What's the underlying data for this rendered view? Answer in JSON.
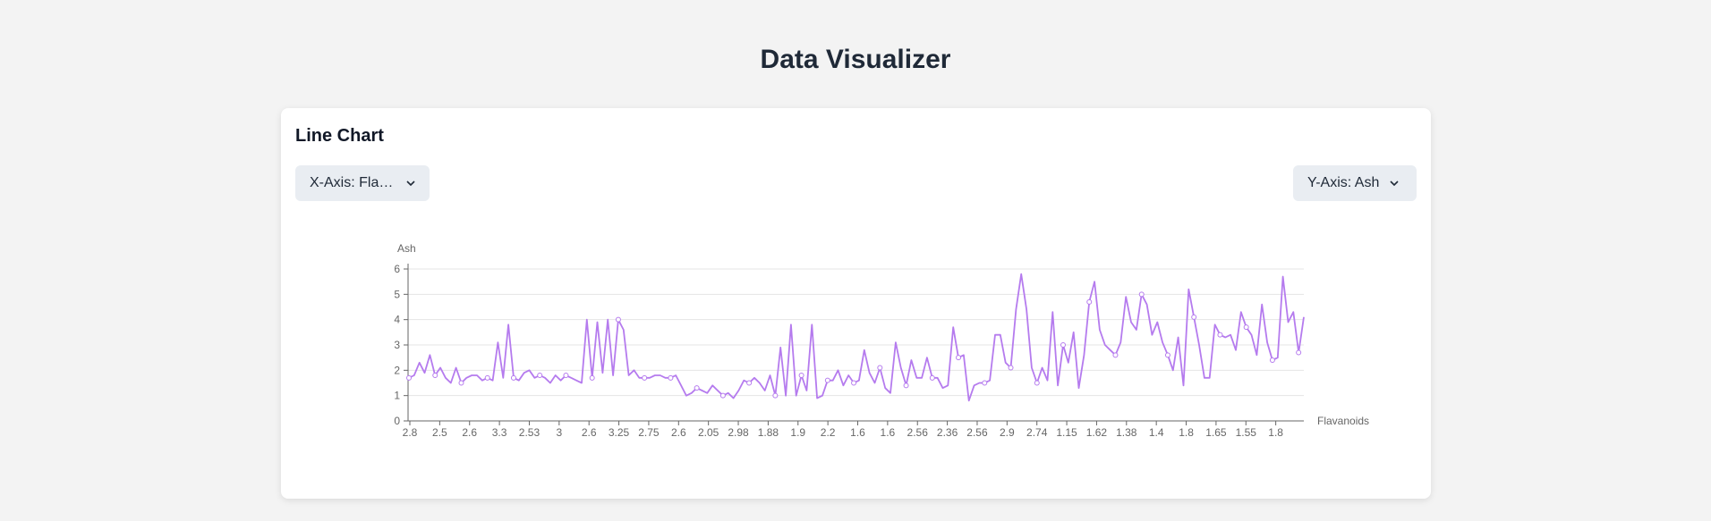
{
  "page": {
    "title": "Data Visualizer"
  },
  "card": {
    "title": "Line Chart",
    "x_select": {
      "label": "X-Axis: Flav..."
    },
    "y_select": {
      "label": "Y-Axis: Ash"
    }
  },
  "icons": {
    "dropdown": "chevron-down-icon"
  },
  "colors": {
    "line": "#b57bee",
    "grid": "#e5e5e5",
    "axis": "#666666"
  },
  "chart_data": {
    "type": "line",
    "xlabel": "Flavanoids",
    "ylabel": "Ash",
    "ylim": [
      0,
      6
    ],
    "yticks": [
      0,
      1,
      2,
      3,
      4,
      5,
      6
    ],
    "grid": "horizontal",
    "x_tick_labels": [
      "2.8",
      "2.5",
      "2.6",
      "3.3",
      "2.53",
      "3",
      "2.6",
      "3.25",
      "2.75",
      "2.6",
      "2.05",
      "2.98",
      "1.88",
      "1.9",
      "2.2",
      "1.6",
      "1.6",
      "2.56",
      "2.36",
      "2.56",
      "2.9",
      "2.74",
      "1.15",
      "1.62",
      "1.38",
      "1.4",
      "1.8",
      "1.65",
      "1.55",
      "1.8"
    ],
    "y": [
      1.7,
      1.8,
      2.3,
      1.9,
      2.6,
      1.8,
      2.1,
      1.7,
      1.5,
      2.1,
      1.5,
      1.7,
      1.8,
      1.8,
      1.6,
      1.7,
      1.6,
      3.1,
      1.7,
      3.8,
      1.7,
      1.6,
      1.9,
      2.0,
      1.7,
      1.8,
      1.7,
      1.5,
      1.8,
      1.6,
      1.8,
      1.7,
      1.6,
      1.5,
      4.0,
      1.7,
      3.9,
      1.9,
      4.0,
      1.8,
      4.0,
      3.6,
      1.8,
      2.0,
      1.7,
      1.7,
      1.7,
      1.8,
      1.8,
      1.7,
      1.7,
      1.8,
      1.4,
      1.0,
      1.1,
      1.3,
      1.2,
      1.1,
      1.4,
      1.2,
      1.0,
      1.1,
      0.9,
      1.2,
      1.6,
      1.5,
      1.7,
      1.5,
      1.2,
      1.8,
      1.0,
      2.9,
      1.0,
      3.8,
      1.0,
      1.8,
      1.2,
      3.8,
      0.9,
      1.0,
      1.6,
      1.6,
      2.0,
      1.4,
      1.8,
      1.5,
      1.6,
      2.8,
      1.9,
      1.5,
      2.1,
      1.3,
      1.1,
      3.1,
      2.1,
      1.4,
      2.4,
      1.7,
      1.7,
      2.5,
      1.7,
      1.7,
      1.3,
      1.4,
      3.7,
      2.5,
      2.6,
      0.8,
      1.4,
      1.5,
      1.5,
      1.6,
      3.4,
      3.4,
      2.3,
      2.1,
      4.4,
      5.8,
      4.4,
      2.1,
      1.5,
      2.1,
      1.6,
      4.3,
      1.4,
      3.0,
      2.3,
      3.5,
      1.3,
      2.6,
      4.7,
      5.5,
      3.6,
      3.0,
      2.8,
      2.6,
      3.1,
      4.9,
      3.9,
      3.6,
      5.0,
      4.6,
      3.4,
      3.9,
      3.1,
      2.6,
      2.0,
      3.3,
      1.4,
      5.2,
      4.1,
      3.0,
      1.7,
      1.7,
      3.8,
      3.4,
      3.3,
      3.4,
      2.8,
      4.3,
      3.7,
      3.4,
      2.6,
      4.6,
      3.1,
      2.4,
      2.5,
      5.7,
      3.9,
      4.3,
      2.7,
      4.1
    ]
  }
}
